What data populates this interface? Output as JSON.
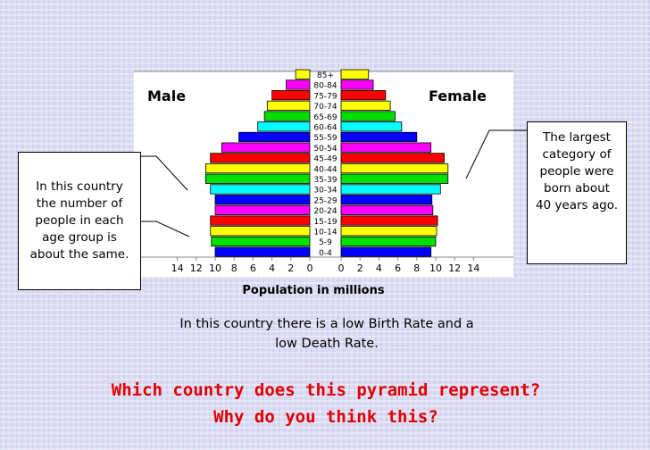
{
  "chart_data": {
    "type": "bar",
    "orientation": "horizontal-population-pyramid",
    "categories": [
      "0-4",
      "5-9",
      "10-14",
      "15-19",
      "20-24",
      "25-29",
      "30-34",
      "35-39",
      "40-44",
      "45-49",
      "50-54",
      "55-59",
      "60-64",
      "65-69",
      "70-74",
      "75-79",
      "80-84",
      "85+"
    ],
    "series": [
      {
        "name": "Male",
        "values": [
          10.0,
          10.4,
          10.5,
          10.5,
          10.0,
          10.0,
          10.5,
          11.0,
          11.0,
          10.5,
          9.3,
          7.5,
          5.5,
          4.8,
          4.5,
          4.0,
          2.5,
          1.5
        ]
      },
      {
        "name": "Female",
        "values": [
          9.5,
          10.0,
          10.1,
          10.2,
          9.7,
          9.6,
          10.5,
          11.3,
          11.3,
          10.9,
          9.5,
          8.0,
          6.4,
          5.7,
          5.2,
          4.7,
          3.4,
          2.9
        ]
      }
    ],
    "xlabel": "Population in millions",
    "xticks_left": [
      "14",
      "12",
      "10",
      "8",
      "6",
      "4",
      "2",
      "0"
    ],
    "xticks_right": [
      "0",
      "2",
      "4",
      "6",
      "8",
      "10",
      "12",
      "14"
    ],
    "xlim": [
      0,
      14
    ],
    "colors": [
      "#0000ff",
      "#00e000",
      "#ffff00",
      "#ff0000",
      "#ff00ff",
      "#0000ff",
      "#00ffff",
      "#00e000",
      "#ffff00",
      "#ff0000",
      "#ff00ff",
      "#0000ff",
      "#00ffff",
      "#00e000",
      "#ffff00",
      "#ff0000",
      "#ff00ff",
      "#ffff00"
    ],
    "label_male": "Male",
    "label_female": "Female"
  },
  "callouts": {
    "left": [
      "In this country",
      "the number of",
      "people in each",
      "age group is",
      "about the same."
    ],
    "right": [
      "The largest",
      "category of",
      "people were",
      "born about",
      "40 years ago."
    ]
  },
  "caption": [
    "In this country there is a low Birth Rate and a",
    "low Death Rate."
  ],
  "question": [
    "Which country does this pyramid represent?",
    "Why do you think this?"
  ]
}
